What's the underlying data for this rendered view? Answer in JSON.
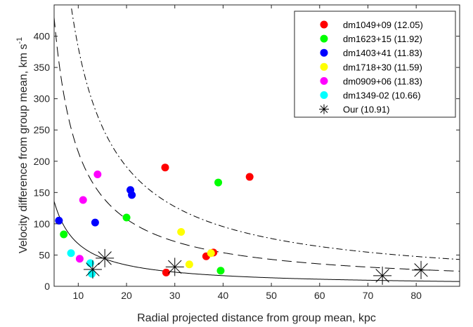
{
  "chart_data": {
    "type": "scatter",
    "xlabel": "Radial projected distance from group mean, kpc",
    "ylabel": "Velocity difference from group mean, km s",
    "ylabel_superscript": "-1",
    "xlim": [
      5,
      89
    ],
    "ylim": [
      0,
      450
    ],
    "x_ticks": [
      10,
      20,
      30,
      40,
      50,
      60,
      70,
      80
    ],
    "y_ticks": [
      0,
      50,
      100,
      150,
      200,
      250,
      300,
      350,
      400
    ],
    "grid": false,
    "legend_position": "top-right",
    "series": [
      {
        "name": "dm1049+09 (12.05)",
        "color": "#ff0000",
        "marker": "circle",
        "points": [
          [
            28,
            190
          ],
          [
            45.5,
            175
          ],
          [
            36.5,
            48
          ],
          [
            38,
            54
          ],
          [
            28.2,
            22
          ]
        ]
      },
      {
        "name": "dm1623+15 (11.92)",
        "color": "#00ff00",
        "marker": "circle",
        "points": [
          [
            7,
            83
          ],
          [
            20,
            110
          ],
          [
            39,
            166
          ],
          [
            39.5,
            25
          ]
        ]
      },
      {
        "name": "dm1403+41 (11.83)",
        "color": "#0000ff",
        "marker": "circle",
        "points": [
          [
            6,
            105
          ],
          [
            13.5,
            102
          ],
          [
            20.8,
            154
          ],
          [
            21.1,
            146
          ]
        ]
      },
      {
        "name": "dm1718+30 (11.59)",
        "color": "#ffff00",
        "marker": "circle",
        "points": [
          [
            31.3,
            87
          ],
          [
            37.5,
            53
          ],
          [
            33,
            35
          ]
        ]
      },
      {
        "name": "dm0909+06 (11.83)",
        "color": "#ff00ff",
        "marker": "circle",
        "points": [
          [
            14,
            179
          ],
          [
            11,
            138
          ],
          [
            10.3,
            44
          ]
        ]
      },
      {
        "name": "dm1349-02 (10.66)",
        "color": "#00ffff",
        "marker": "circle",
        "points": [
          [
            8.5,
            53
          ],
          [
            12.5,
            37
          ],
          [
            12.8,
            20
          ]
        ]
      },
      {
        "name": "Our (10.91)",
        "color": "#000000",
        "marker": "asterisk",
        "points": [
          [
            13,
            27
          ],
          [
            15.5,
            45
          ],
          [
            30,
            31
          ],
          [
            73,
            17
          ],
          [
            81,
            26
          ]
        ]
      }
    ],
    "curves": [
      {
        "style": "solid",
        "k": 680
      },
      {
        "style": "dashed",
        "k": 2150
      },
      {
        "style": "dashdot",
        "k": 3820
      }
    ]
  }
}
